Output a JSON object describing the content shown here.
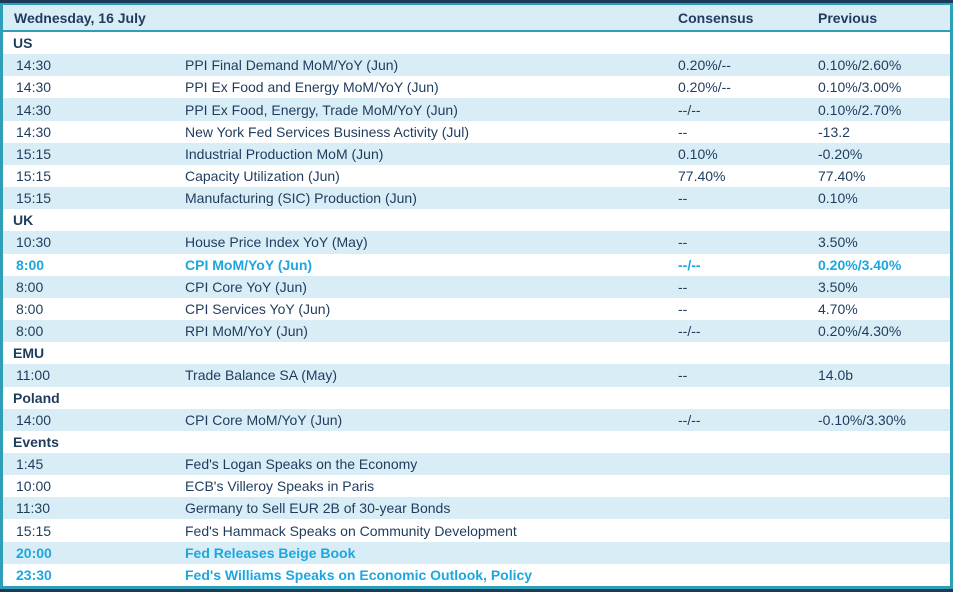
{
  "table": {
    "title": "Wednesday, 16 July",
    "columns": [
      "Consensus",
      "Previous"
    ],
    "sections": [
      {
        "name": "US",
        "rows": [
          {
            "time": "14:30",
            "event": "PPI Final Demand MoM/YoY (Jun)",
            "consensus": "0.20%/--",
            "previous": "0.10%/2.60%",
            "highlight": false
          },
          {
            "time": "14:30",
            "event": "PPI Ex Food and Energy MoM/YoY (Jun)",
            "consensus": "0.20%/--",
            "previous": "0.10%/3.00%",
            "highlight": false
          },
          {
            "time": "14:30",
            "event": "PPI Ex Food, Energy, Trade MoM/YoY (Jun)",
            "consensus": "--/--",
            "previous": "0.10%/2.70%",
            "highlight": false
          },
          {
            "time": "14:30",
            "event": "New York Fed Services Business Activity (Jul)",
            "consensus": "--",
            "previous": "-13.2",
            "highlight": false
          },
          {
            "time": "15:15",
            "event": "Industrial Production MoM (Jun)",
            "consensus": "0.10%",
            "previous": "-0.20%",
            "highlight": false
          },
          {
            "time": "15:15",
            "event": "Capacity Utilization (Jun)",
            "consensus": "77.40%",
            "previous": "77.40%",
            "highlight": false
          },
          {
            "time": "15:15",
            "event": "Manufacturing (SIC) Production (Jun)",
            "consensus": "--",
            "previous": "0.10%",
            "highlight": false
          }
        ]
      },
      {
        "name": "UK",
        "rows": [
          {
            "time": "10:30",
            "event": "House Price Index YoY (May)",
            "consensus": "--",
            "previous": "3.50%",
            "highlight": false
          },
          {
            "time": "8:00",
            "event": "CPI MoM/YoY (Jun)",
            "consensus": "--/--",
            "previous": "0.20%/3.40%",
            "highlight": true
          },
          {
            "time": "8:00",
            "event": "CPI Core YoY (Jun)",
            "consensus": "--",
            "previous": "3.50%",
            "highlight": false
          },
          {
            "time": "8:00",
            "event": "CPI Services YoY (Jun)",
            "consensus": "--",
            "previous": "4.70%",
            "highlight": false
          },
          {
            "time": "8:00",
            "event": "RPI MoM/YoY (Jun)",
            "consensus": "--/--",
            "previous": "0.20%/4.30%",
            "highlight": false
          }
        ]
      },
      {
        "name": "EMU",
        "rows": [
          {
            "time": "11:00",
            "event": "Trade Balance SA (May)",
            "consensus": "--",
            "previous": "14.0b",
            "highlight": false
          }
        ]
      },
      {
        "name": "Poland",
        "rows": [
          {
            "time": "14:00",
            "event": "CPI Core MoM/YoY (Jun)",
            "consensus": "--/--",
            "previous": "-0.10%/3.30%",
            "highlight": false
          }
        ]
      },
      {
        "name": "Events",
        "rows": [
          {
            "time": "1:45",
            "event": "Fed's Logan Speaks on the Economy",
            "consensus": "",
            "previous": "",
            "highlight": false
          },
          {
            "time": "10:00",
            "event": "ECB's Villeroy Speaks in Paris",
            "consensus": "",
            "previous": "",
            "highlight": false
          },
          {
            "time": "11:30",
            "event": "Germany to Sell EUR 2B of 30-year Bonds",
            "consensus": "",
            "previous": "",
            "highlight": false
          },
          {
            "time": "15:15",
            "event": "Fed's Hammack Speaks on Community Development",
            "consensus": "",
            "previous": "",
            "highlight": false
          },
          {
            "time": "20:00",
            "event": "Fed Releases Beige Book",
            "consensus": "",
            "previous": "",
            "highlight": true
          },
          {
            "time": "23:30",
            "event": "Fed's Williams Speaks on Economic Outlook, Policy",
            "consensus": "",
            "previous": "",
            "highlight": true
          }
        ]
      }
    ]
  },
  "colors": {
    "text_navy": "#1f3c5f",
    "highlight_cyan": "#1ba7e0",
    "row_alt_bg": "#d9edf6",
    "header_bg": "#d9edf6",
    "border_teal": "#2f9fb8",
    "border_dark": "#1b3a5a"
  }
}
